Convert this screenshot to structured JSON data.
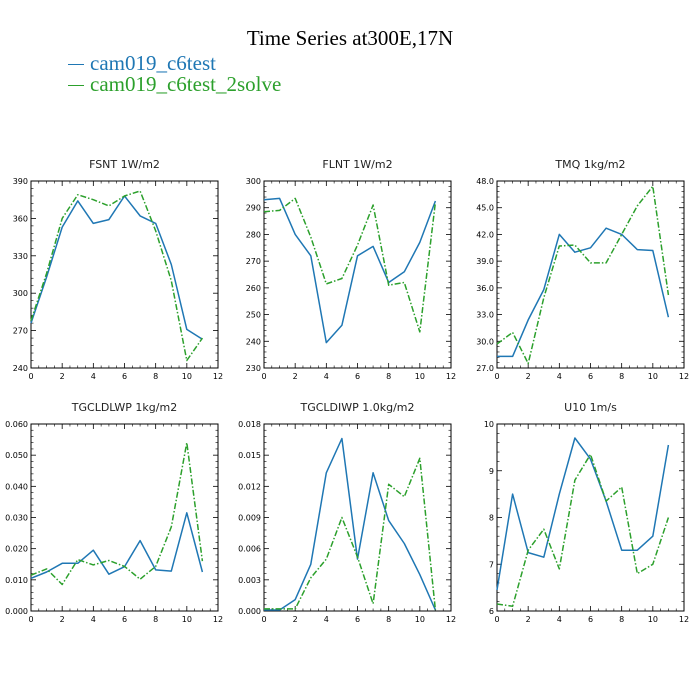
{
  "title": "Time Series at300E,17N",
  "legend": [
    {
      "name": "cam019_c6test",
      "color": "#1f77b4",
      "dash": "solid"
    },
    {
      "name": "cam019_c6test_2solve",
      "color": "#2ca02c",
      "dash": "dashdot"
    }
  ],
  "chart_data": [
    {
      "type": "line",
      "title": "FSNT   1W/m2",
      "xlim": [
        0,
        12
      ],
      "xticks": [
        0,
        2,
        4,
        6,
        8,
        10,
        12
      ],
      "ylim": [
        240,
        390
      ],
      "yticks": [
        240,
        270,
        300,
        330,
        360,
        390
      ],
      "ytick_labels": [
        "240",
        "270",
        "300",
        "330",
        "360",
        "390"
      ],
      "x": [
        0,
        1,
        2,
        3,
        4,
        5,
        6,
        7,
        8,
        9,
        10,
        11
      ],
      "series": [
        {
          "name": "cam019_c6test",
          "values": [
            276,
            313,
            353,
            374,
            356,
            359,
            378,
            362,
            356,
            323,
            271,
            263
          ]
        },
        {
          "name": "cam019_c6test_2solve",
          "values": [
            278,
            316,
            360,
            379,
            375,
            370,
            378,
            382,
            350,
            310,
            246,
            264
          ]
        }
      ]
    },
    {
      "type": "line",
      "title": "FLNT   1W/m2",
      "xlim": [
        0,
        12
      ],
      "xticks": [
        0,
        2,
        4,
        6,
        8,
        10,
        12
      ],
      "ylim": [
        230,
        300
      ],
      "yticks": [
        230,
        240,
        250,
        260,
        270,
        280,
        290,
        300
      ],
      "ytick_labels": [
        "230",
        "240",
        "250",
        "260",
        "270",
        "280",
        "290",
        "300"
      ],
      "x": [
        0,
        1,
        2,
        3,
        4,
        5,
        6,
        7,
        8,
        9,
        10,
        11
      ],
      "series": [
        {
          "name": "cam019_c6test",
          "values": [
            293,
            293.5,
            280,
            272,
            239.5,
            246,
            272,
            275.5,
            262,
            266,
            277,
            292.5
          ]
        },
        {
          "name": "cam019_c6test_2solve",
          "values": [
            288.5,
            289,
            293.5,
            279,
            261.5,
            263.5,
            276,
            291,
            261,
            262,
            243.5,
            292
          ]
        }
      ]
    },
    {
      "type": "line",
      "title": "TMQ   1kg/m2",
      "xlim": [
        0,
        12
      ],
      "xticks": [
        0,
        2,
        4,
        6,
        8,
        10,
        12
      ],
      "ylim": [
        27,
        48
      ],
      "yticks": [
        27,
        30,
        33,
        36,
        39,
        42,
        45,
        48
      ],
      "ytick_labels": [
        "27.0",
        "30.0",
        "33.0",
        "36.0",
        "39.0",
        "42.0",
        "45.0",
        "48.0"
      ],
      "x": [
        0,
        1,
        2,
        3,
        4,
        5,
        6,
        7,
        8,
        9,
        10,
        11
      ],
      "series": [
        {
          "name": "cam019_c6test",
          "values": [
            28.3,
            28.3,
            32.4,
            35.8,
            42.0,
            40.0,
            40.5,
            42.7,
            42.0,
            40.3,
            40.2,
            32.7
          ]
        },
        {
          "name": "cam019_c6test_2solve",
          "values": [
            29.7,
            31.0,
            27.5,
            34.9,
            40.7,
            40.8,
            38.8,
            38.8,
            42.0,
            45.2,
            47.4,
            35.2
          ]
        }
      ]
    },
    {
      "type": "line",
      "title": "TGCLDLWP   1kg/m2",
      "xlim": [
        0,
        12
      ],
      "xticks": [
        0,
        2,
        4,
        6,
        8,
        10,
        12
      ],
      "ylim": [
        0,
        0.06
      ],
      "yticks": [
        0,
        0.01,
        0.02,
        0.03,
        0.04,
        0.05,
        0.06
      ],
      "ytick_labels": [
        "0.000",
        "0.010",
        "0.020",
        "0.030",
        "0.040",
        "0.050",
        "0.060"
      ],
      "x": [
        0,
        1,
        2,
        3,
        4,
        5,
        6,
        7,
        8,
        9,
        10,
        11
      ],
      "series": [
        {
          "name": "cam019_c6test",
          "values": [
            0.0105,
            0.0125,
            0.0153,
            0.0153,
            0.0195,
            0.0118,
            0.0142,
            0.0226,
            0.0132,
            0.0128,
            0.0315,
            0.0125
          ]
        },
        {
          "name": "cam019_c6test_2solve",
          "values": [
            0.0115,
            0.0135,
            0.0085,
            0.0165,
            0.0148,
            0.0162,
            0.0143,
            0.0102,
            0.0143,
            0.027,
            0.054,
            0.016
          ]
        }
      ]
    },
    {
      "type": "line",
      "title": "TGCLDIWP   1.0kg/m2",
      "xlim": [
        0,
        12
      ],
      "xticks": [
        0,
        2,
        4,
        6,
        8,
        10,
        12
      ],
      "ylim": [
        0,
        0.018
      ],
      "yticks": [
        0,
        0.003,
        0.006,
        0.009,
        0.012,
        0.015,
        0.018
      ],
      "ytick_labels": [
        "0.000",
        "0.003",
        "0.006",
        "0.009",
        "0.012",
        "0.015",
        "0.018"
      ],
      "x": [
        0,
        1,
        2,
        3,
        4,
        5,
        6,
        7,
        8,
        9,
        10,
        11
      ],
      "series": [
        {
          "name": "cam019_c6test",
          "values": [
            0.0001,
            0.0001,
            0.0011,
            0.0045,
            0.0133,
            0.0166,
            0.005,
            0.0133,
            0.0087,
            0.0065,
            0.0035,
            0.0001
          ]
        },
        {
          "name": "cam019_c6test_2solve",
          "values": [
            0.0002,
            0.0002,
            0.0002,
            0.0032,
            0.005,
            0.009,
            0.0052,
            0.0007,
            0.0122,
            0.011,
            0.0147,
            0.0001
          ]
        }
      ]
    },
    {
      "type": "line",
      "title": "U10   1m/s",
      "xlim": [
        0,
        12
      ],
      "xticks": [
        0,
        2,
        4,
        6,
        8,
        10,
        12
      ],
      "ylim": [
        6,
        10
      ],
      "yticks": [
        6,
        7,
        8,
        9,
        10
      ],
      "ytick_labels": [
        "6",
        "7",
        "8",
        "9",
        "10"
      ],
      "x": [
        0,
        1,
        2,
        3,
        4,
        5,
        6,
        7,
        8,
        9,
        10,
        11
      ],
      "series": [
        {
          "name": "cam019_c6test",
          "values": [
            6.45,
            8.5,
            7.25,
            7.15,
            8.5,
            9.7,
            9.25,
            8.35,
            7.3,
            7.3,
            7.6,
            9.55
          ]
        },
        {
          "name": "cam019_c6test_2solve",
          "values": [
            6.15,
            6.1,
            7.3,
            7.75,
            6.9,
            8.8,
            9.35,
            8.35,
            8.65,
            6.8,
            7.0,
            8.0
          ]
        }
      ]
    }
  ]
}
